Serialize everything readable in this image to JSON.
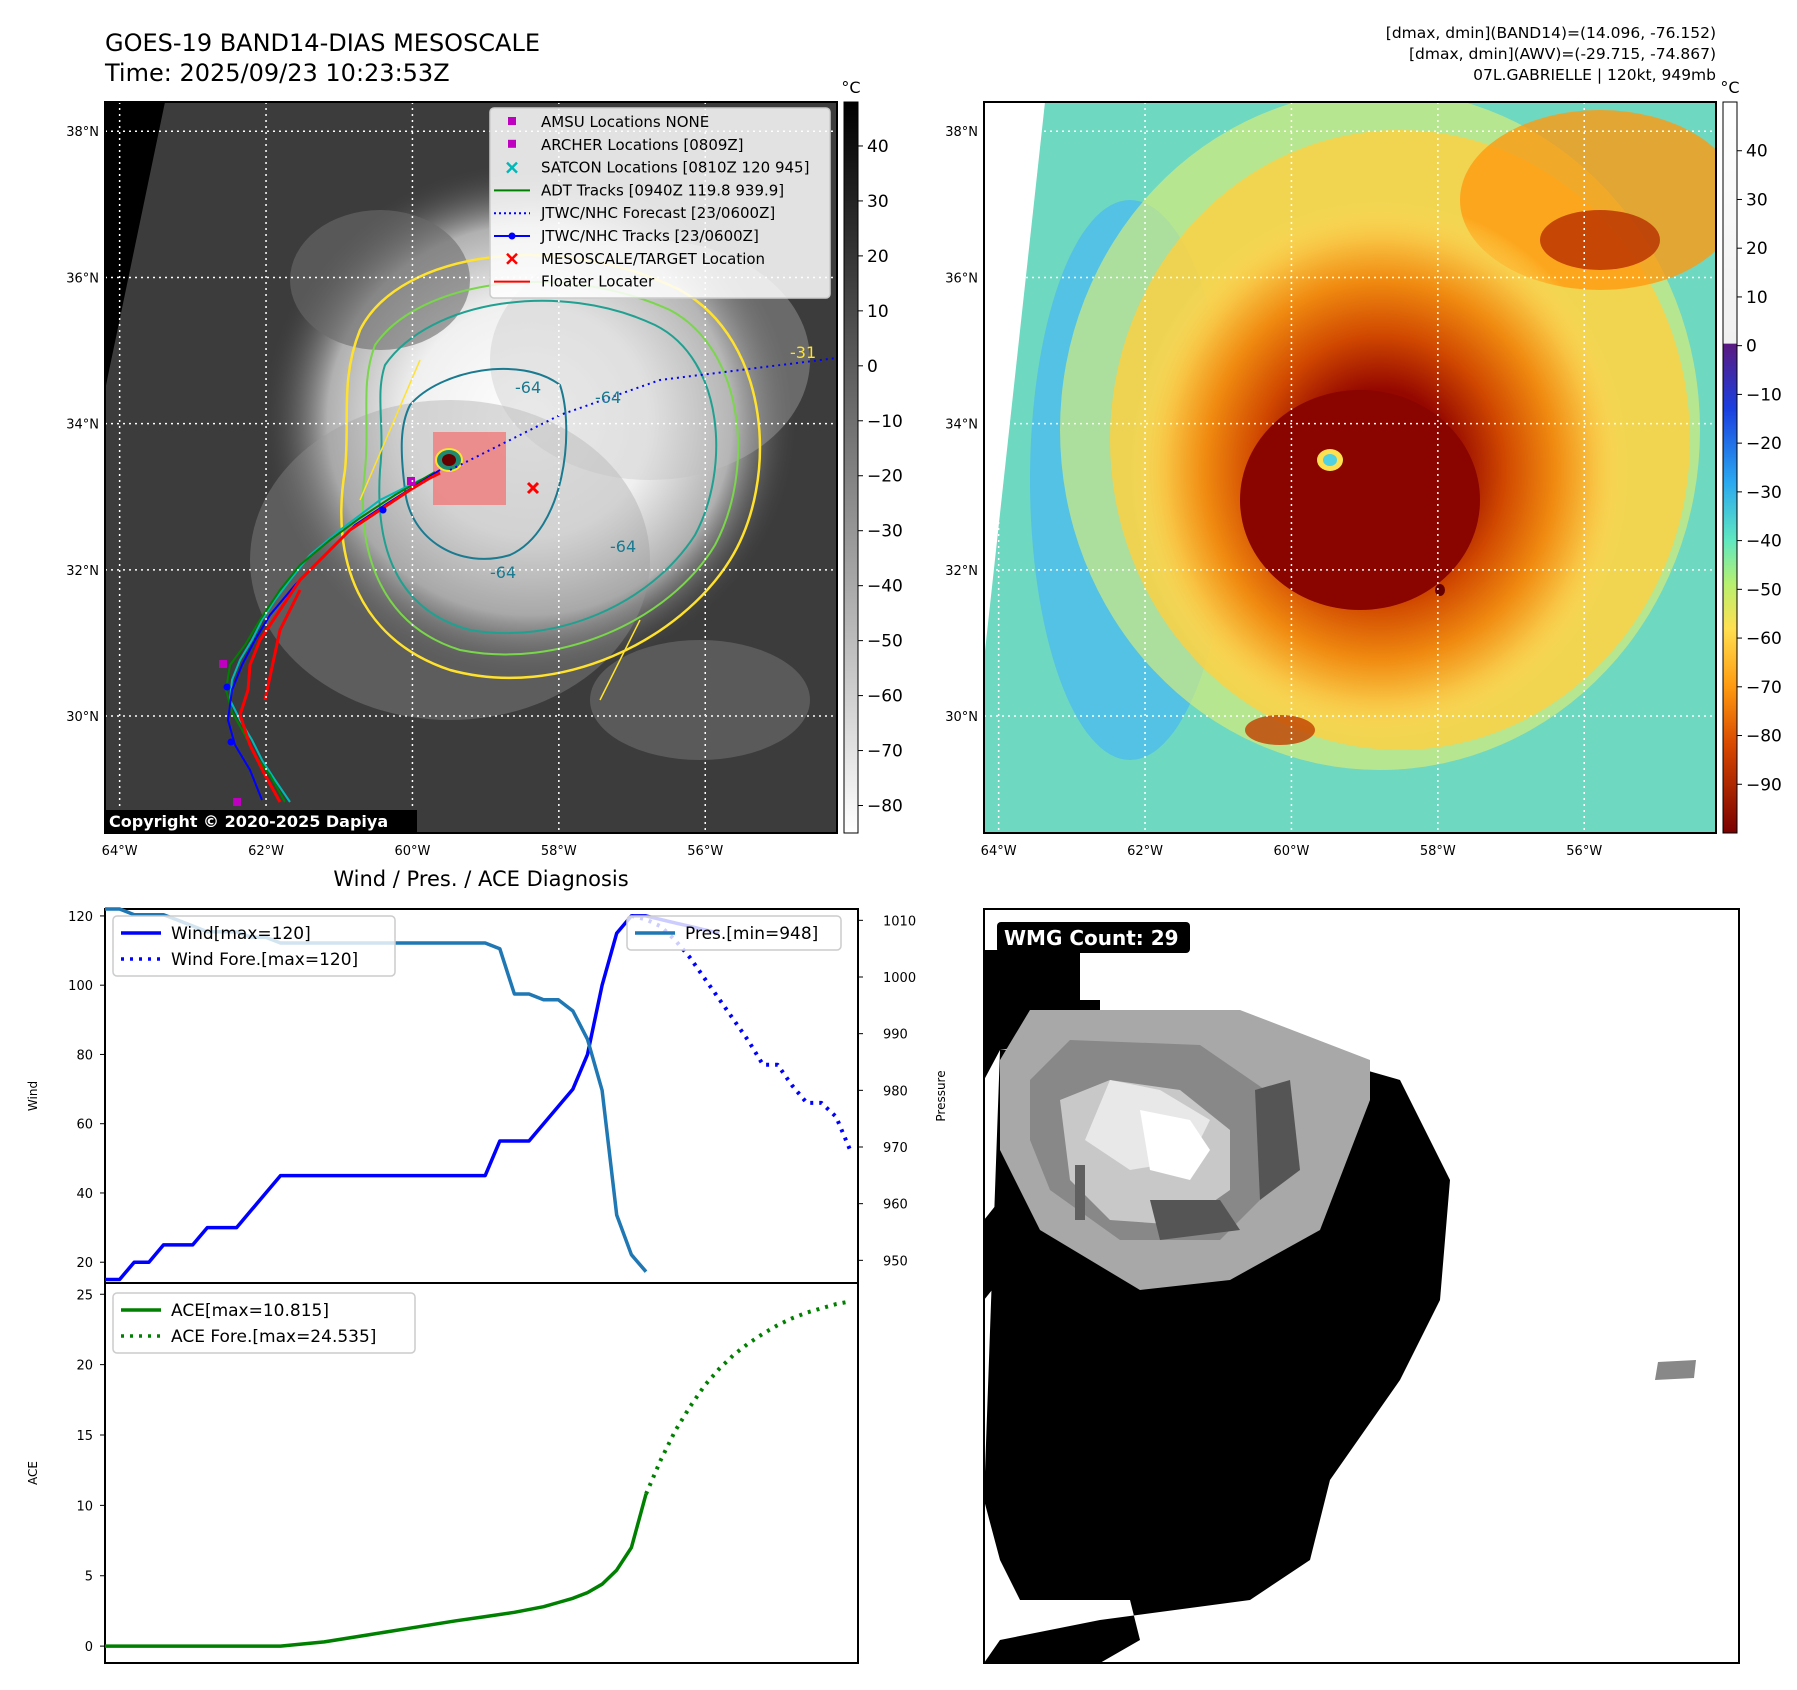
{
  "header": {
    "title_line1": "GOES-19 BAND14-DIAS MESOSCALE",
    "title_line2": "Time: 2025/09/23 10:23:53Z",
    "info_line1": "[dmax, dmin](BAND14)=(14.096, -76.152)",
    "info_line2": "[dmax, dmin](AWV)=(-29.715, -74.867)",
    "info_line3": "07L.GABRIELLE | 120kt, 949mb"
  },
  "copyright": "Copyright © 2020-2025 Dapiya",
  "map_axes": {
    "lon_labels": [
      "64°W",
      "62°W",
      "60°W",
      "58°W",
      "56°W"
    ],
    "lat_labels": [
      "38°N",
      "36°N",
      "34°N",
      "32°N",
      "30°N"
    ],
    "lon_values": [
      -64,
      -62,
      -60,
      -58,
      -56
    ],
    "lat_values": [
      38,
      36,
      34,
      32,
      30
    ],
    "lon_range": [
      -64.2,
      -54.2
    ],
    "lat_range": [
      28.4,
      38.4
    ]
  },
  "ir_colorbar": {
    "unit": "°C",
    "ticks": [
      40,
      30,
      20,
      10,
      0,
      -10,
      -20,
      -30,
      -40,
      -50,
      -60,
      -70,
      -80
    ],
    "range": [
      -85,
      48
    ]
  },
  "dias_colorbar": {
    "unit": "°C",
    "ticks": [
      40,
      30,
      20,
      10,
      0,
      -10,
      -20,
      -30,
      -40,
      -50,
      -60,
      -70,
      -80,
      -90
    ],
    "range": [
      -100,
      50
    ]
  },
  "legend_map": [
    {
      "label": "AMSU Locations NONE",
      "color": "#c000c0",
      "marker": "square"
    },
    {
      "label": "ARCHER Locations [0809Z]",
      "color": "#c000c0",
      "marker": "square"
    },
    {
      "label": "SATCON Locations [0810Z 120 945]",
      "color": "#00b8b8",
      "marker": "x"
    },
    {
      "label": "ADT Tracks [0940Z 119.8 939.9]",
      "color": "#008000",
      "marker": "line"
    },
    {
      "label": "JTWC/NHC Forecast [23/0600Z]",
      "color": "#0000ff",
      "marker": "dotted"
    },
    {
      "label": "JTWC/NHC Tracks [23/0600Z]",
      "color": "#0000ff",
      "marker": "line-dot"
    },
    {
      "label": "MESOSCALE/TARGET Location",
      "color": "#ff0000",
      "marker": "x"
    },
    {
      "label": "Floater Locater",
      "color": "#ff0000",
      "marker": "line"
    }
  ],
  "contour_labels": [
    "-64",
    "-64",
    "-64",
    "-64",
    "-31"
  ],
  "wmg_label": "WMG Count: 29",
  "diag_title": "Wind / Pres. / ACE Diagnosis",
  "chart_data": [
    {
      "type": "line",
      "title": "Wind / Pres. / ACE Diagnosis",
      "ylabel": "Wind",
      "ylabel_right": "Pressure",
      "ylim": [
        14,
        122
      ],
      "ylim_right": [
        946,
        1012
      ],
      "yticks": [
        20,
        40,
        60,
        80,
        100,
        120
      ],
      "yticks_right": [
        950,
        960,
        970,
        980,
        990,
        1000,
        1010
      ],
      "xlim": [
        0,
        103
      ],
      "series": [
        {
          "name": "Wind[max=120]",
          "axis": "left",
          "color": "#0000ff",
          "style": "solid",
          "x": [
            0,
            2,
            4,
            6,
            8,
            10,
            12,
            14,
            16,
            18,
            20,
            22,
            24,
            26,
            28,
            30,
            32,
            34,
            36,
            38,
            40,
            42,
            44,
            46,
            48,
            50,
            52,
            54,
            56,
            58,
            60,
            62,
            64,
            66,
            68,
            70,
            72,
            74,
            76,
            78,
            80,
            82,
            84
          ],
          "y": [
            15,
            15,
            20,
            20,
            25,
            25,
            25,
            30,
            30,
            30,
            35,
            40,
            45,
            45,
            45,
            45,
            45,
            45,
            45,
            45,
            45,
            45,
            45,
            45,
            45,
            45,
            45,
            55,
            55,
            55,
            60,
            65,
            70,
            80,
            100,
            115,
            120,
            120,
            119,
            118,
            117,
            116,
            115
          ]
        },
        {
          "name": "Wind Fore.[max=120]",
          "axis": "left",
          "color": "#0000ff",
          "style": "dotted",
          "x": [
            72,
            74,
            76,
            78,
            80,
            82,
            84,
            86,
            88,
            90,
            92,
            94,
            96,
            98,
            100,
            102
          ],
          "y": [
            120,
            119,
            117,
            113,
            108,
            102,
            96,
            90,
            84,
            77,
            77,
            71,
            66,
            66,
            62,
            52
          ]
        },
        {
          "name": "Pres.[min=948]",
          "axis": "right",
          "color": "#1f77b4",
          "style": "solid",
          "x": [
            0,
            2,
            4,
            6,
            8,
            10,
            12,
            14,
            16,
            18,
            20,
            22,
            24,
            26,
            28,
            30,
            32,
            34,
            36,
            38,
            40,
            42,
            44,
            46,
            48,
            50,
            52,
            54,
            56,
            58,
            60,
            62,
            64,
            66,
            68,
            70,
            72,
            74
          ],
          "y": [
            1012,
            1012,
            1011,
            1011,
            1011,
            1010,
            1009,
            1008,
            1008,
            1008,
            1007,
            1007,
            1006,
            1006,
            1006,
            1006,
            1006,
            1006,
            1006,
            1006,
            1006,
            1006,
            1006,
            1006,
            1006,
            1006,
            1006,
            1005,
            997,
            997,
            996,
            996,
            994,
            989,
            980,
            958,
            951,
            948
          ]
        }
      ]
    },
    {
      "type": "line",
      "ylabel": "ACE",
      "ylim": [
        -1.2,
        25.8
      ],
      "yticks": [
        0,
        5,
        10,
        15,
        20,
        25
      ],
      "xlim": [
        0,
        103
      ],
      "series": [
        {
          "name": "ACE[max=10.815]",
          "color": "#008000",
          "style": "solid",
          "x": [
            0,
            8,
            16,
            20,
            24,
            30,
            36,
            42,
            48,
            52,
            56,
            60,
            62,
            64,
            66,
            68,
            70,
            72,
            74
          ],
          "y": [
            0,
            0,
            0,
            0,
            0,
            0.3,
            0.8,
            1.3,
            1.8,
            2.1,
            2.4,
            2.8,
            3.1,
            3.4,
            3.8,
            4.4,
            5.4,
            7.0,
            10.8
          ]
        },
        {
          "name": "ACE Fore.[max=24.535]",
          "color": "#008000",
          "style": "dotted",
          "x": [
            74,
            76,
            78,
            80,
            82,
            84,
            86,
            88,
            90,
            92,
            94,
            96,
            98,
            100,
            102
          ],
          "y": [
            10.8,
            13.2,
            15.3,
            17.0,
            18.5,
            19.7,
            20.7,
            21.5,
            22.2,
            22.8,
            23.3,
            23.7,
            24.0,
            24.3,
            24.5
          ]
        }
      ]
    }
  ]
}
